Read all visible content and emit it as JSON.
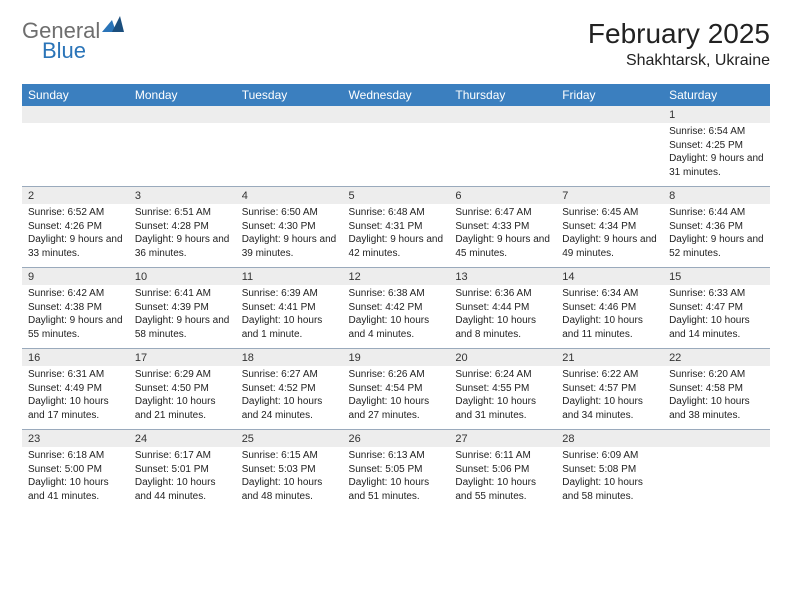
{
  "logo": {
    "text1": "General",
    "text2": "Blue",
    "color1": "#6e6e6e",
    "color2": "#2a74b8"
  },
  "title": "February 2025",
  "location": "Shakhtarsk, Ukraine",
  "colors": {
    "header_bg": "#3b7fbf",
    "header_text": "#ffffff",
    "daynum_bg": "#ededed",
    "border": "#9aaabc",
    "text": "#222222"
  },
  "days_of_week": [
    "Sunday",
    "Monday",
    "Tuesday",
    "Wednesday",
    "Thursday",
    "Friday",
    "Saturday"
  ],
  "weeks": [
    [
      null,
      null,
      null,
      null,
      null,
      null,
      {
        "n": "1",
        "sunrise": "6:54 AM",
        "sunset": "4:25 PM",
        "daylight": "9 hours and 31 minutes."
      }
    ],
    [
      {
        "n": "2",
        "sunrise": "6:52 AM",
        "sunset": "4:26 PM",
        "daylight": "9 hours and 33 minutes."
      },
      {
        "n": "3",
        "sunrise": "6:51 AM",
        "sunset": "4:28 PM",
        "daylight": "9 hours and 36 minutes."
      },
      {
        "n": "4",
        "sunrise": "6:50 AM",
        "sunset": "4:30 PM",
        "daylight": "9 hours and 39 minutes."
      },
      {
        "n": "5",
        "sunrise": "6:48 AM",
        "sunset": "4:31 PM",
        "daylight": "9 hours and 42 minutes."
      },
      {
        "n": "6",
        "sunrise": "6:47 AM",
        "sunset": "4:33 PM",
        "daylight": "9 hours and 45 minutes."
      },
      {
        "n": "7",
        "sunrise": "6:45 AM",
        "sunset": "4:34 PM",
        "daylight": "9 hours and 49 minutes."
      },
      {
        "n": "8",
        "sunrise": "6:44 AM",
        "sunset": "4:36 PM",
        "daylight": "9 hours and 52 minutes."
      }
    ],
    [
      {
        "n": "9",
        "sunrise": "6:42 AM",
        "sunset": "4:38 PM",
        "daylight": "9 hours and 55 minutes."
      },
      {
        "n": "10",
        "sunrise": "6:41 AM",
        "sunset": "4:39 PM",
        "daylight": "9 hours and 58 minutes."
      },
      {
        "n": "11",
        "sunrise": "6:39 AM",
        "sunset": "4:41 PM",
        "daylight": "10 hours and 1 minute."
      },
      {
        "n": "12",
        "sunrise": "6:38 AM",
        "sunset": "4:42 PM",
        "daylight": "10 hours and 4 minutes."
      },
      {
        "n": "13",
        "sunrise": "6:36 AM",
        "sunset": "4:44 PM",
        "daylight": "10 hours and 8 minutes."
      },
      {
        "n": "14",
        "sunrise": "6:34 AM",
        "sunset": "4:46 PM",
        "daylight": "10 hours and 11 minutes."
      },
      {
        "n": "15",
        "sunrise": "6:33 AM",
        "sunset": "4:47 PM",
        "daylight": "10 hours and 14 minutes."
      }
    ],
    [
      {
        "n": "16",
        "sunrise": "6:31 AM",
        "sunset": "4:49 PM",
        "daylight": "10 hours and 17 minutes."
      },
      {
        "n": "17",
        "sunrise": "6:29 AM",
        "sunset": "4:50 PM",
        "daylight": "10 hours and 21 minutes."
      },
      {
        "n": "18",
        "sunrise": "6:27 AM",
        "sunset": "4:52 PM",
        "daylight": "10 hours and 24 minutes."
      },
      {
        "n": "19",
        "sunrise": "6:26 AM",
        "sunset": "4:54 PM",
        "daylight": "10 hours and 27 minutes."
      },
      {
        "n": "20",
        "sunrise": "6:24 AM",
        "sunset": "4:55 PM",
        "daylight": "10 hours and 31 minutes."
      },
      {
        "n": "21",
        "sunrise": "6:22 AM",
        "sunset": "4:57 PM",
        "daylight": "10 hours and 34 minutes."
      },
      {
        "n": "22",
        "sunrise": "6:20 AM",
        "sunset": "4:58 PM",
        "daylight": "10 hours and 38 minutes."
      }
    ],
    [
      {
        "n": "23",
        "sunrise": "6:18 AM",
        "sunset": "5:00 PM",
        "daylight": "10 hours and 41 minutes."
      },
      {
        "n": "24",
        "sunrise": "6:17 AM",
        "sunset": "5:01 PM",
        "daylight": "10 hours and 44 minutes."
      },
      {
        "n": "25",
        "sunrise": "6:15 AM",
        "sunset": "5:03 PM",
        "daylight": "10 hours and 48 minutes."
      },
      {
        "n": "26",
        "sunrise": "6:13 AM",
        "sunset": "5:05 PM",
        "daylight": "10 hours and 51 minutes."
      },
      {
        "n": "27",
        "sunrise": "6:11 AM",
        "sunset": "5:06 PM",
        "daylight": "10 hours and 55 minutes."
      },
      {
        "n": "28",
        "sunrise": "6:09 AM",
        "sunset": "5:08 PM",
        "daylight": "10 hours and 58 minutes."
      },
      null
    ]
  ]
}
